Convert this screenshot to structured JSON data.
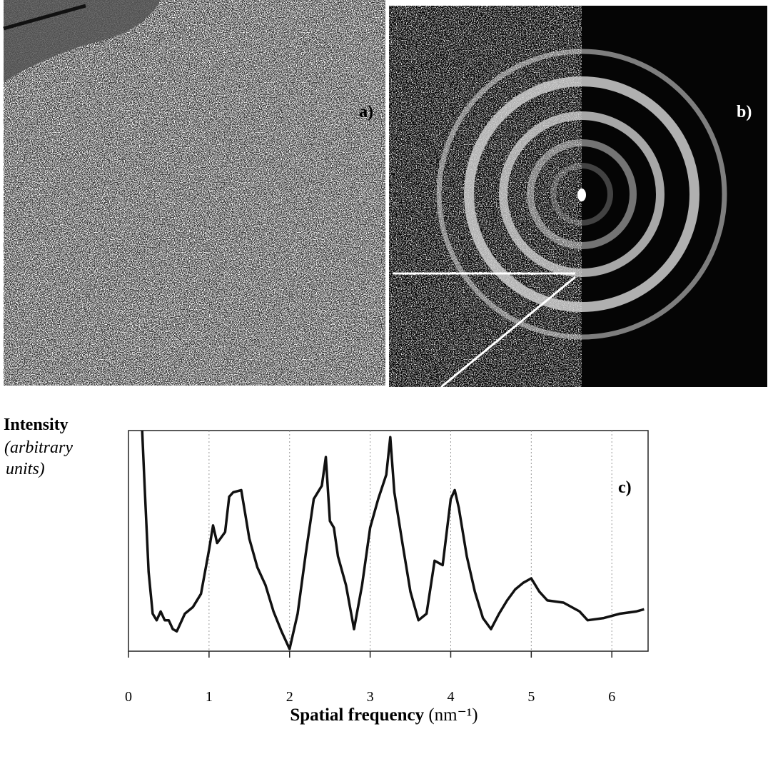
{
  "panels": {
    "a": "a)",
    "b": "b)"
  },
  "chart_data": {
    "type": "line",
    "panel_label": "c)",
    "y_label": "Intensity",
    "y_unit": "(arbitrary units)",
    "x_label": "Spatial frequency",
    "x_unit": "(nm⁻¹)",
    "x": [
      0.17,
      0.2,
      0.25,
      0.3,
      0.35,
      0.4,
      0.45,
      0.5,
      0.55,
      0.6,
      0.7,
      0.8,
      0.9,
      1.0,
      1.05,
      1.1,
      1.2,
      1.25,
      1.3,
      1.4,
      1.45,
      1.5,
      1.6,
      1.7,
      1.8,
      1.9,
      2.0,
      2.1,
      2.2,
      2.3,
      2.4,
      2.45,
      2.5,
      2.55,
      2.6,
      2.7,
      2.8,
      2.9,
      3.0,
      3.1,
      3.2,
      3.25,
      3.3,
      3.4,
      3.5,
      3.6,
      3.7,
      3.8,
      3.9,
      4.0,
      4.05,
      4.1,
      4.2,
      4.3,
      4.4,
      4.5,
      4.6,
      4.7,
      4.8,
      4.9,
      5.0,
      5.1,
      5.2,
      5.4,
      5.6,
      5.7,
      5.9,
      6.1,
      6.3,
      6.4
    ],
    "series": [
      {
        "color": "#111111",
        "values": [
          100,
          75,
          36,
          17,
          14,
          18,
          14,
          14,
          10,
          9,
          17,
          20,
          26,
          46,
          57,
          49,
          54,
          70,
          72,
          73,
          62,
          51,
          38,
          30,
          18,
          9,
          1,
          17,
          44,
          69,
          75,
          88,
          59,
          56,
          43,
          30,
          10,
          30,
          56,
          69,
          80,
          97,
          72,
          49,
          27,
          14,
          17,
          41,
          39,
          69,
          73,
          65,
          43,
          27,
          15,
          10,
          17,
          23,
          28,
          31,
          33,
          27,
          23,
          22,
          18,
          14,
          15,
          17,
          18,
          19
        ]
      }
    ],
    "xlim": [
      0,
      6.45
    ],
    "xticks": [
      0,
      1,
      2,
      3,
      4,
      5,
      6
    ],
    "ylim": [
      0,
      100
    ],
    "grid": true
  }
}
